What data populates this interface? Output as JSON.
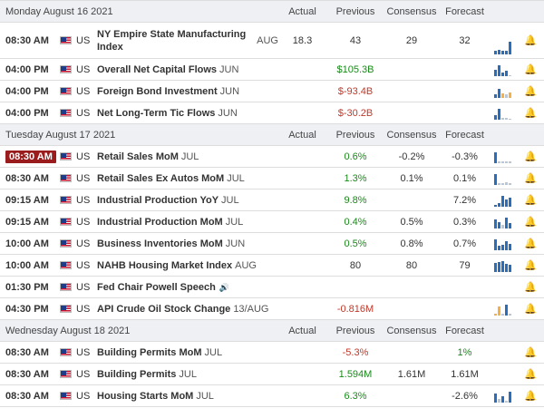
{
  "days": [
    {
      "label": "Monday August 16 2021",
      "headers": {
        "actual": "Actual",
        "previous": "Previous",
        "consensus": "Consensus",
        "forecast": "Forecast"
      },
      "events": [
        {
          "time": "08:30 AM",
          "country": "US",
          "name": "NY Empire State Manufacturing Index",
          "suffix": "AUG",
          "actual": "18.3",
          "previous": "43",
          "consensus": "29",
          "forecast": "32",
          "tall": true,
          "bars": [
            {
              "h": 0.3,
              "c": "b"
            },
            {
              "h": 0.35,
              "c": "b"
            },
            {
              "h": 0.3,
              "c": "b"
            },
            {
              "h": 0.3,
              "c": "b"
            },
            {
              "h": 1.0,
              "c": "b"
            }
          ]
        },
        {
          "time": "04:00 PM",
          "country": "US",
          "name": "Overall Net Capital Flows",
          "suffix": "JUN",
          "actual": "",
          "previous": "$105.3B",
          "prev_color": "green",
          "consensus": "",
          "forecast": "",
          "bars": [
            {
              "h": 0.6,
              "c": "b"
            },
            {
              "h": 1.0,
              "c": "b"
            },
            {
              "h": 0.3,
              "c": "b"
            },
            {
              "h": 0.5,
              "c": "b"
            },
            {
              "h": 0.0,
              "c": "g"
            }
          ]
        },
        {
          "time": "04:00 PM",
          "country": "US",
          "name": "Foreign Bond Investment",
          "suffix": "JUN",
          "actual": "",
          "previous": "$-93.4B",
          "prev_color": "red",
          "consensus": "",
          "forecast": "",
          "bars": [
            {
              "h": 0.3,
              "c": "b"
            },
            {
              "h": 0.8,
              "c": "b"
            },
            {
              "h": 0.4,
              "c": "o"
            },
            {
              "h": 0.3,
              "c": "g"
            },
            {
              "h": 0.5,
              "c": "o"
            }
          ]
        },
        {
          "time": "04:00 PM",
          "country": "US",
          "name": "Net Long-Term Tic Flows",
          "suffix": "JUN",
          "actual": "",
          "previous": "$-30.2B",
          "prev_color": "red",
          "consensus": "",
          "forecast": "",
          "bars": [
            {
              "h": 0.4,
              "c": "b"
            },
            {
              "h": 1.0,
              "c": "b"
            },
            {
              "h": 0.2,
              "c": "g"
            },
            {
              "h": 0.2,
              "c": "g"
            },
            {
              "h": 0.0,
              "c": "g"
            }
          ]
        }
      ]
    },
    {
      "label": "Tuesday August 17 2021",
      "headers": {
        "actual": "Actual",
        "previous": "Previous",
        "consensus": "Consensus",
        "forecast": "Forecast"
      },
      "events": [
        {
          "time": "08:30 AM",
          "highlight": true,
          "country": "US",
          "name": "Retail Sales MoM",
          "suffix": "JUL",
          "actual": "",
          "previous": "0.6%",
          "prev_color": "green",
          "consensus": "-0.2%",
          "forecast": "-0.3%",
          "bars": [
            {
              "h": 1.0,
              "c": "b"
            },
            {
              "h": 0.2,
              "c": "g"
            },
            {
              "h": 0.15,
              "c": "g"
            },
            {
              "h": 0.2,
              "c": "g"
            },
            {
              "h": 0.15,
              "c": "g"
            }
          ]
        },
        {
          "time": "08:30 AM",
          "country": "US",
          "name": "Retail Sales Ex Autos MoM",
          "suffix": "JUL",
          "actual": "",
          "previous": "1.3%",
          "prev_color": "green",
          "consensus": "0.1%",
          "forecast": "0.1%",
          "bars": [
            {
              "h": 1.0,
              "c": "b"
            },
            {
              "h": 0.2,
              "c": "g"
            },
            {
              "h": 0.2,
              "c": "g"
            },
            {
              "h": 0.25,
              "c": "g"
            },
            {
              "h": 0.15,
              "c": "g"
            }
          ]
        },
        {
          "time": "09:15 AM",
          "country": "US",
          "name": "Industrial Production YoY",
          "suffix": "JUL",
          "actual": "",
          "previous": "9.8%",
          "prev_color": "green",
          "consensus": "",
          "forecast": "7.2%",
          "bars": [
            {
              "h": 0.2,
              "c": "b"
            },
            {
              "h": 0.3,
              "c": "b"
            },
            {
              "h": 1.0,
              "c": "b"
            },
            {
              "h": 0.7,
              "c": "b"
            },
            {
              "h": 0.8,
              "c": "b"
            }
          ]
        },
        {
          "time": "09:15 AM",
          "country": "US",
          "name": "Industrial Production MoM",
          "suffix": "JUL",
          "actual": "",
          "previous": "0.4%",
          "prev_color": "green",
          "consensus": "0.5%",
          "forecast": "0.3%",
          "bars": [
            {
              "h": 0.8,
              "c": "b"
            },
            {
              "h": 0.6,
              "c": "b"
            },
            {
              "h": 0.3,
              "c": "g"
            },
            {
              "h": 1.0,
              "c": "b"
            },
            {
              "h": 0.5,
              "c": "b"
            }
          ]
        },
        {
          "time": "10:00 AM",
          "country": "US",
          "name": "Business Inventories MoM",
          "suffix": "JUN",
          "actual": "",
          "previous": "0.5%",
          "prev_color": "green",
          "consensus": "0.8%",
          "forecast": "0.7%",
          "bars": [
            {
              "h": 1.0,
              "c": "b"
            },
            {
              "h": 0.4,
              "c": "b"
            },
            {
              "h": 0.5,
              "c": "b"
            },
            {
              "h": 0.8,
              "c": "b"
            },
            {
              "h": 0.6,
              "c": "b"
            }
          ]
        },
        {
          "time": "10:00 AM",
          "country": "US",
          "name": "NAHB Housing Market Index",
          "suffix": "AUG",
          "actual": "",
          "previous": "80",
          "consensus": "80",
          "forecast": "79",
          "bars": [
            {
              "h": 0.8,
              "c": "b"
            },
            {
              "h": 0.9,
              "c": "b"
            },
            {
              "h": 1.0,
              "c": "b"
            },
            {
              "h": 0.75,
              "c": "b"
            },
            {
              "h": 0.7,
              "c": "b"
            }
          ]
        },
        {
          "time": "01:30 PM",
          "country": "US",
          "name": "Fed Chair Powell Speech",
          "suffix": "",
          "speaker": true,
          "actual": "",
          "previous": "",
          "consensus": "",
          "forecast": "",
          "bars": []
        },
        {
          "time": "04:30 PM",
          "country": "US",
          "name": "API Crude Oil Stock Change",
          "suffix": "13/AUG",
          "actual": "",
          "previous": "-0.816M",
          "prev_color": "red",
          "consensus": "",
          "forecast": "",
          "bars": [
            {
              "h": 0.2,
              "c": "o"
            },
            {
              "h": 0.8,
              "c": "o"
            },
            {
              "h": 0.2,
              "c": "g"
            },
            {
              "h": 1.0,
              "c": "b"
            },
            {
              "h": 0.15,
              "c": "g"
            }
          ]
        }
      ]
    },
    {
      "label": "Wednesday August 18 2021",
      "headers": {
        "actual": "Actual",
        "previous": "Previous",
        "consensus": "Consensus",
        "forecast": "Forecast"
      },
      "events": [
        {
          "time": "08:30 AM",
          "country": "US",
          "name": "Building Permits MoM",
          "suffix": "JUL",
          "actual": "",
          "previous": "-5.3%",
          "prev_color": "red",
          "consensus": "",
          "forecast": "1%",
          "fore_color": "green",
          "bars": []
        },
        {
          "time": "08:30 AM",
          "country": "US",
          "name": "Building Permits",
          "suffix": "JUL",
          "actual": "",
          "previous": "1.594M",
          "prev_color": "green",
          "consensus": "1.61M",
          "forecast": "1.61M",
          "bars": []
        },
        {
          "time": "08:30 AM",
          "country": "US",
          "name": "Housing Starts MoM",
          "suffix": "JUL",
          "actual": "",
          "previous": "6.3%",
          "prev_color": "green",
          "consensus": "",
          "forecast": "-2.6%",
          "bars": [
            {
              "h": 0.8,
              "c": "b"
            },
            {
              "h": 0.3,
              "c": "g"
            },
            {
              "h": 0.6,
              "c": "b"
            },
            {
              "h": 0.2,
              "c": "g"
            },
            {
              "h": 1.0,
              "c": "b"
            }
          ]
        }
      ]
    }
  ]
}
